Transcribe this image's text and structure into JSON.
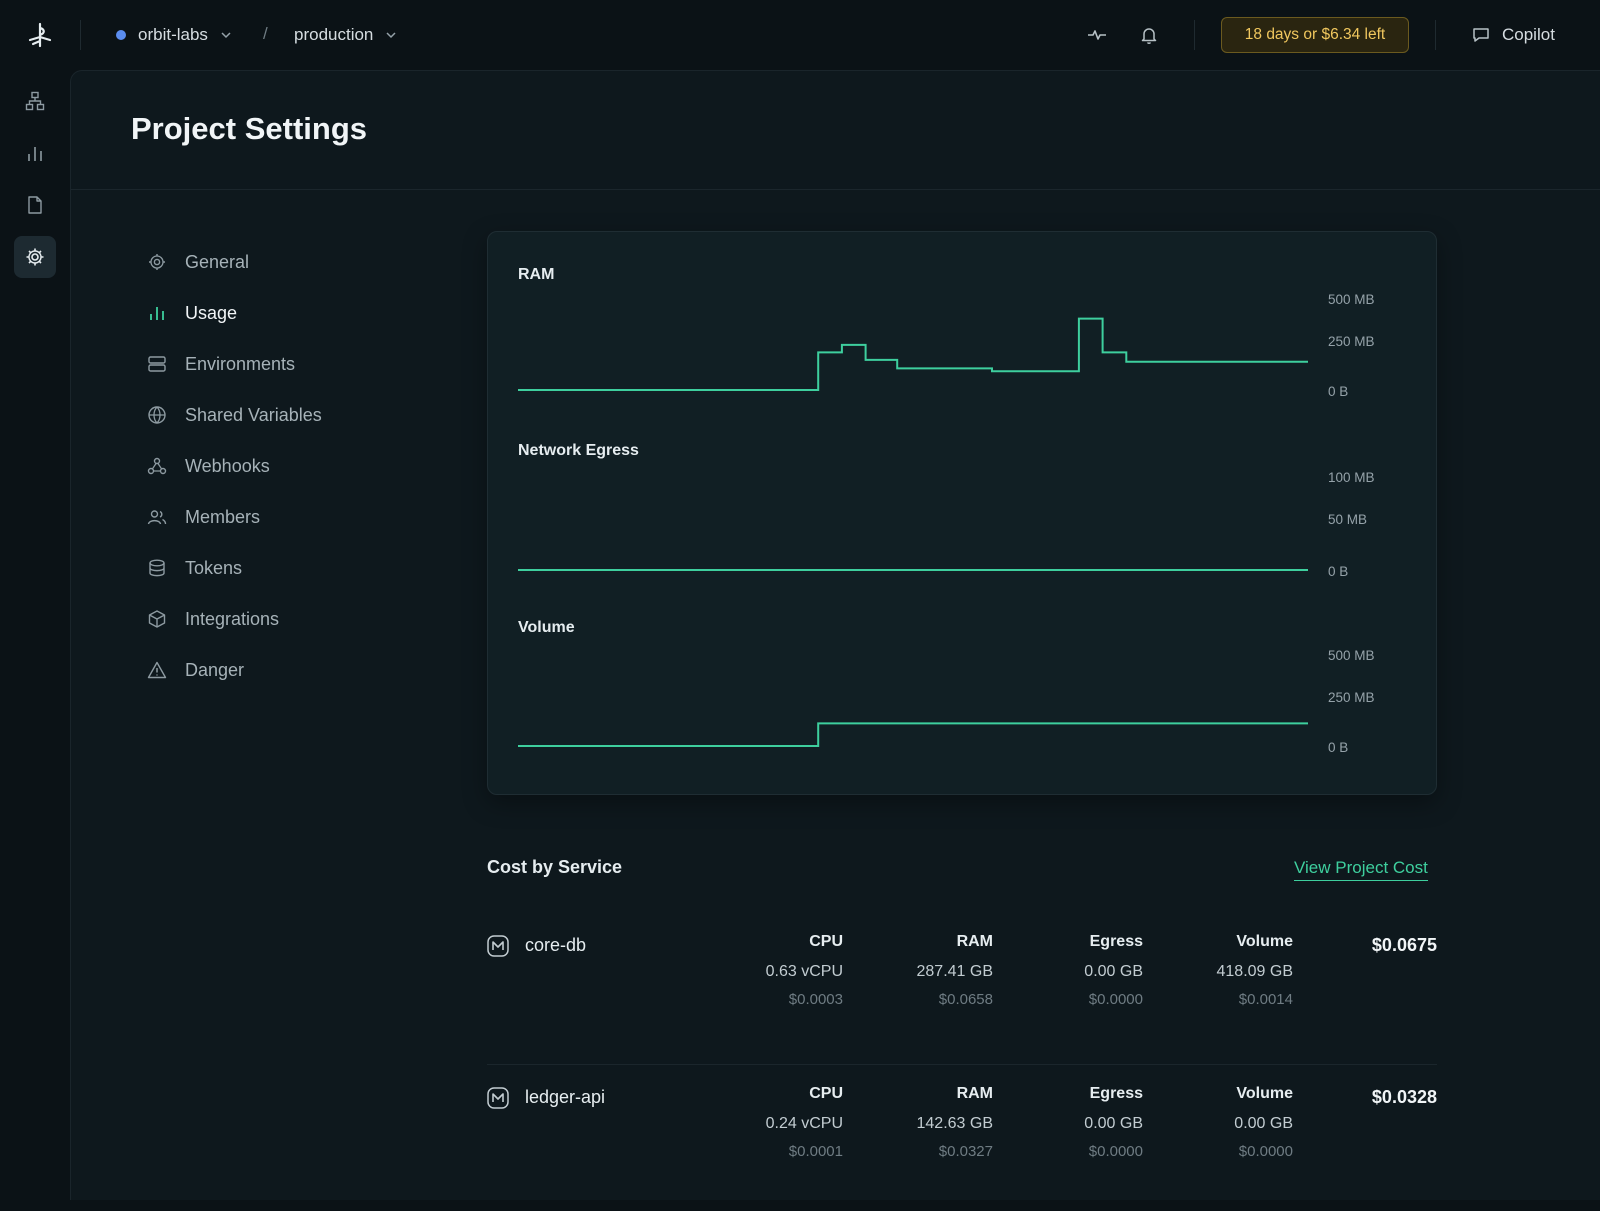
{
  "topbar": {
    "workspace": "orbit-labs",
    "environment": "production",
    "separator": "/",
    "trial_badge": "18 days or $6.34 left",
    "copilot_label": "Copilot",
    "colors": {
      "workspace_dot": "#5b8def",
      "trial": "#f0c75e"
    }
  },
  "rail": {
    "items": [
      "architecture-icon",
      "metrics-icon",
      "logs-icon",
      "settings-icon"
    ],
    "active": "settings-icon"
  },
  "page": {
    "title": "Project Settings"
  },
  "settings_nav": {
    "items": [
      {
        "label": "General",
        "icon": "gear-icon"
      },
      {
        "label": "Usage",
        "icon": "bar-chart-icon"
      },
      {
        "label": "Environments",
        "icon": "server-icon"
      },
      {
        "label": "Shared Variables",
        "icon": "globe-icon"
      },
      {
        "label": "Webhooks",
        "icon": "webhook-icon"
      },
      {
        "label": "Members",
        "icon": "users-icon"
      },
      {
        "label": "Tokens",
        "icon": "database-icon"
      },
      {
        "label": "Integrations",
        "icon": "box-icon"
      },
      {
        "label": "Danger",
        "icon": "warning-icon"
      }
    ],
    "active": "Usage"
  },
  "chart_data": [
    {
      "type": "line",
      "title": "RAM",
      "y_ticks": [
        "500 MB",
        "250 MB",
        "0 B"
      ],
      "ylim": [
        0,
        500
      ],
      "step": true,
      "color": "#3ecf9e",
      "x": [
        0,
        38,
        38,
        41,
        41,
        44,
        44,
        48,
        48,
        60,
        60,
        71,
        71,
        74,
        74,
        77,
        77,
        100
      ],
      "y": [
        0,
        0,
        200,
        200,
        240,
        240,
        160,
        160,
        115,
        115,
        100,
        100,
        380,
        380,
        200,
        200,
        150,
        150
      ]
    },
    {
      "type": "line",
      "title": "Network Egress",
      "y_ticks": [
        "100 MB",
        "50 MB",
        "0 B"
      ],
      "ylim": [
        0,
        100
      ],
      "step": true,
      "color": "#3ecf9e",
      "x": [
        0,
        100
      ],
      "y": [
        0,
        0
      ]
    },
    {
      "type": "line",
      "title": "Volume",
      "y_ticks": [
        "500 MB",
        "250 MB",
        "0 B"
      ],
      "ylim": [
        0,
        500
      ],
      "step": true,
      "color": "#3ecf9e",
      "x": [
        0,
        38,
        38,
        100
      ],
      "y": [
        0,
        0,
        120,
        120
      ]
    }
  ],
  "cost": {
    "title": "Cost by Service",
    "link": "View Project Cost",
    "services": [
      {
        "name": "core-db",
        "total": "$0.0675",
        "metrics": [
          {
            "label": "CPU",
            "value": "0.63 vCPU",
            "cost": "$0.0003"
          },
          {
            "label": "RAM",
            "value": "287.41 GB",
            "cost": "$0.0658"
          },
          {
            "label": "Egress",
            "value": "0.00 GB",
            "cost": "$0.0000"
          },
          {
            "label": "Volume",
            "value": "418.09 GB",
            "cost": "$0.0014"
          }
        ]
      },
      {
        "name": "ledger-api",
        "total": "$0.0328",
        "metrics": [
          {
            "label": "CPU",
            "value": "0.24 vCPU",
            "cost": "$0.0001"
          },
          {
            "label": "RAM",
            "value": "142.63 GB",
            "cost": "$0.0327"
          },
          {
            "label": "Egress",
            "value": "0.00 GB",
            "cost": "$0.0000"
          },
          {
            "label": "Volume",
            "value": "0.00 GB",
            "cost": "$0.0000"
          }
        ]
      }
    ]
  }
}
